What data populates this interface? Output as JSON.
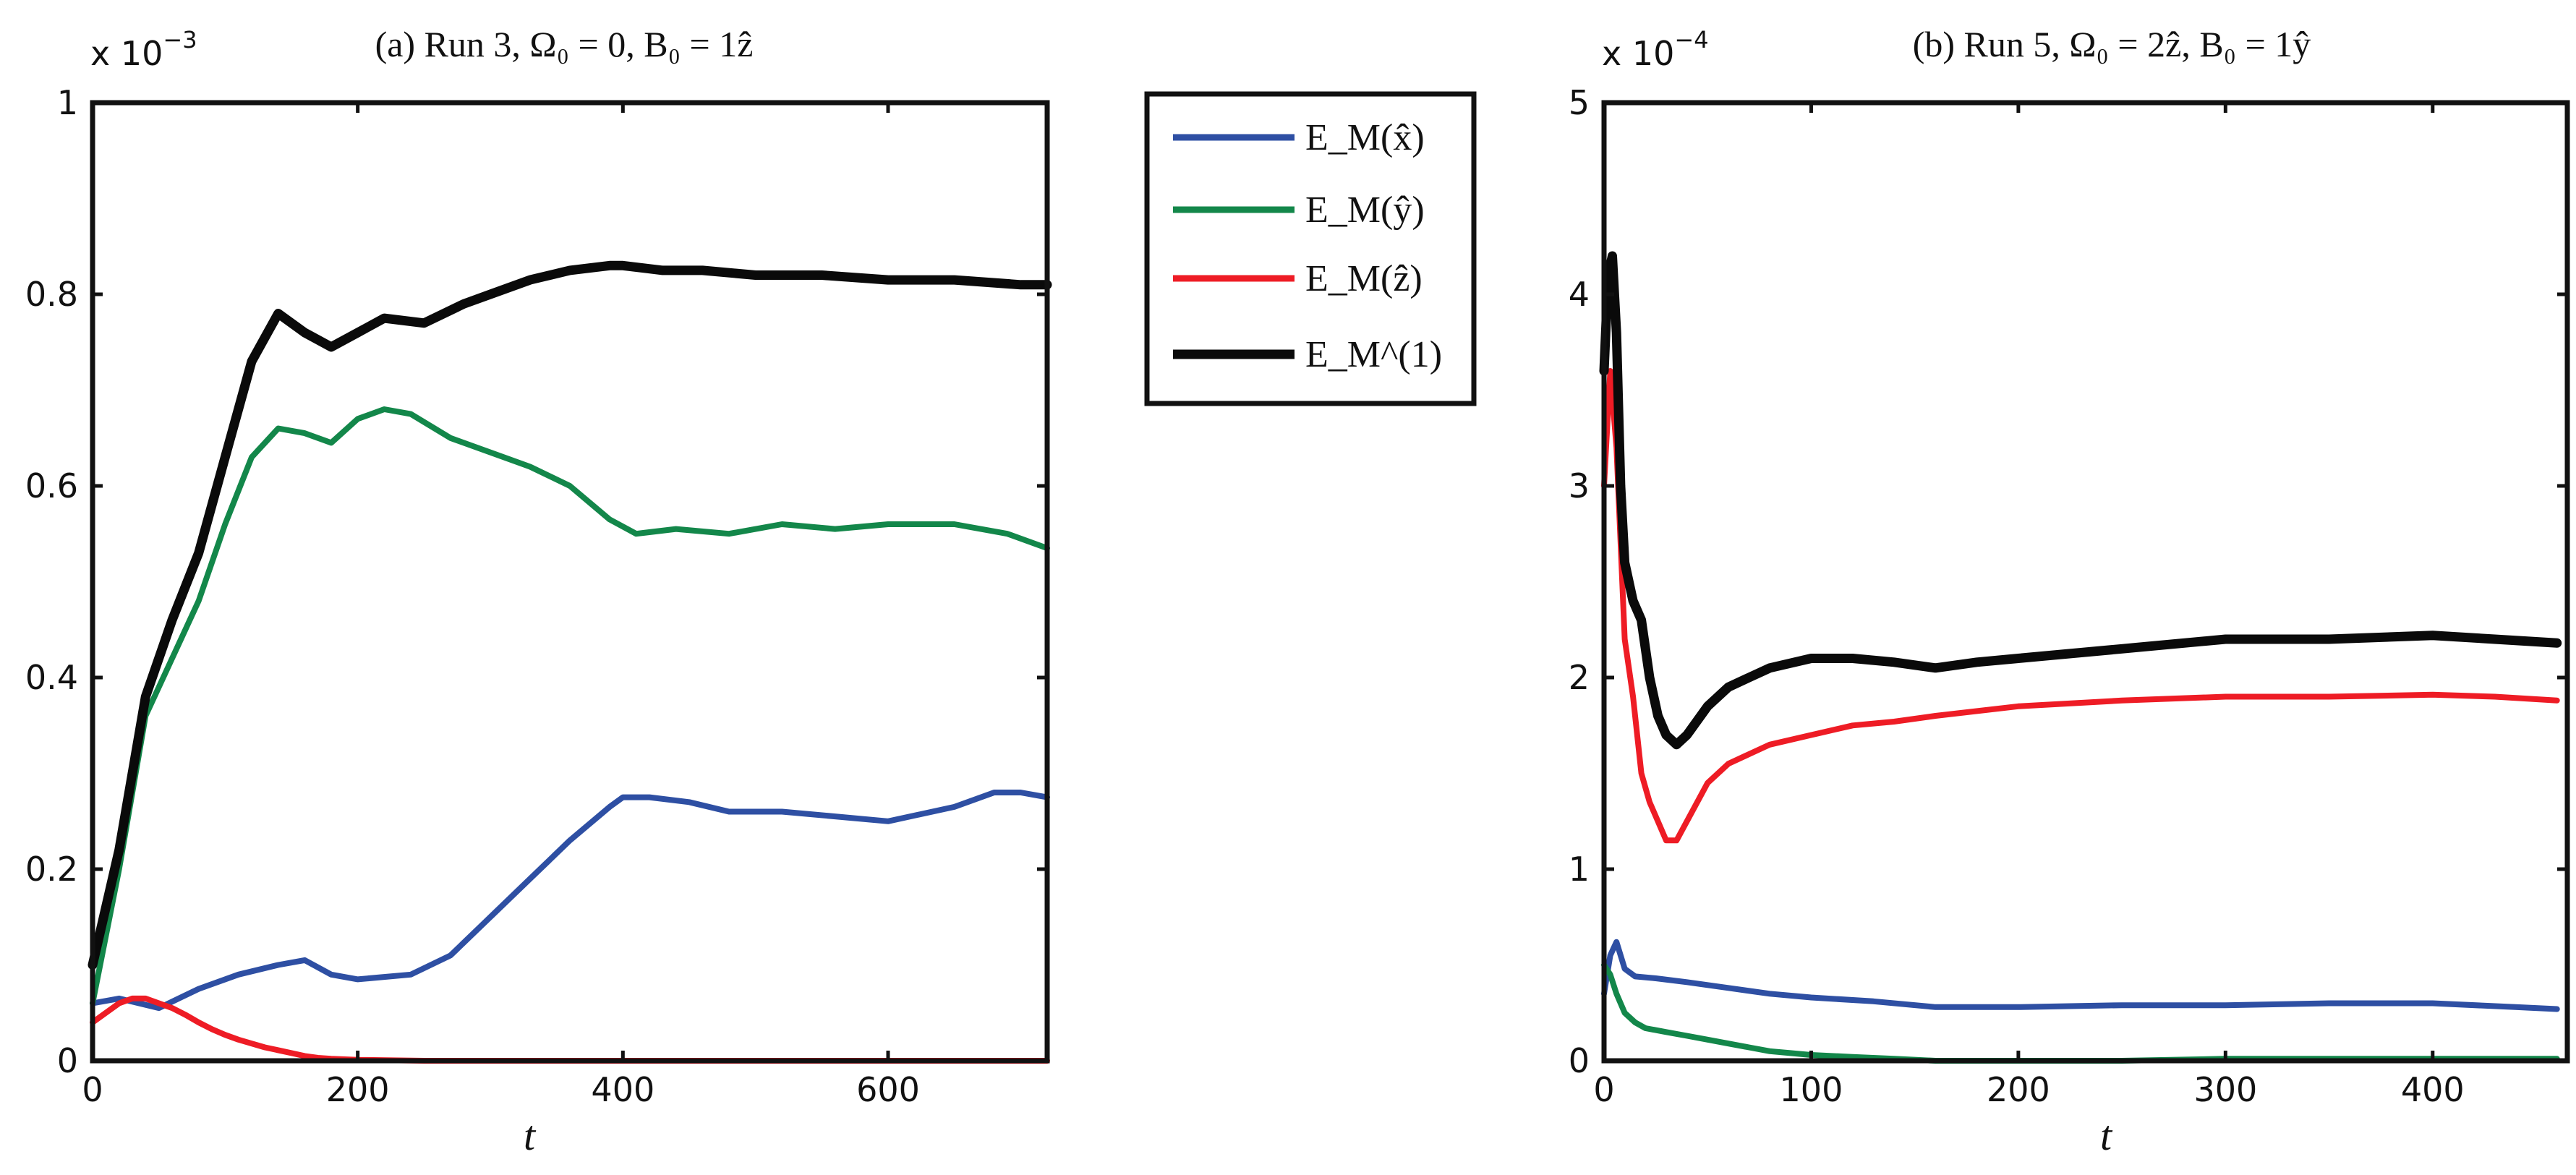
{
  "colors": {
    "ex": "#2e4fa3",
    "ey": "#13874a",
    "ez": "#ee1c25",
    "e1": "#0a0a0a"
  },
  "legend": {
    "entries": [
      {
        "key": "ex",
        "label": "E_M(x̂)"
      },
      {
        "key": "ey",
        "label": "E_M(ŷ)"
      },
      {
        "key": "ez",
        "label": "E_M(ẑ)"
      },
      {
        "key": "e1",
        "label": "E_M^(1)"
      }
    ]
  },
  "chart_data": [
    {
      "type": "line",
      "title": "(a) Run 3, Ω₀ = 0, B₀ = 1ẑ",
      "xlabel": "t",
      "ylabel": "",
      "y_multiplier": "x 10^-3",
      "xlim": [
        0,
        720
      ],
      "ylim": [
        0,
        1
      ],
      "xticks": [
        0,
        200,
        400,
        600
      ],
      "yticks": [
        0,
        0.2,
        0.4,
        0.6,
        0.8,
        1
      ],
      "ytick_labels": [
        "0",
        "0.2",
        "0.4",
        "0.6",
        "0.8",
        "1"
      ],
      "series": [
        {
          "name": "E_M(x̂)",
          "key": "ex",
          "x": [
            0,
            20,
            50,
            80,
            110,
            140,
            160,
            180,
            200,
            240,
            270,
            300,
            330,
            360,
            390,
            400,
            420,
            450,
            480,
            520,
            560,
            600,
            650,
            680,
            700,
            720
          ],
          "y": [
            0.06,
            0.065,
            0.055,
            0.075,
            0.09,
            0.1,
            0.105,
            0.09,
            0.085,
            0.09,
            0.11,
            0.15,
            0.19,
            0.23,
            0.265,
            0.275,
            0.275,
            0.27,
            0.26,
            0.26,
            0.255,
            0.25,
            0.265,
            0.28,
            0.28,
            0.275
          ]
        },
        {
          "name": "E_M(ŷ)",
          "key": "ey",
          "x": [
            0,
            20,
            40,
            60,
            80,
            100,
            120,
            140,
            160,
            180,
            200,
            220,
            240,
            270,
            300,
            330,
            360,
            390,
            410,
            440,
            480,
            520,
            560,
            600,
            650,
            690,
            720
          ],
          "y": [
            0.06,
            0.2,
            0.36,
            0.42,
            0.48,
            0.56,
            0.63,
            0.66,
            0.655,
            0.645,
            0.67,
            0.68,
            0.675,
            0.65,
            0.635,
            0.62,
            0.6,
            0.565,
            0.55,
            0.555,
            0.55,
            0.56,
            0.555,
            0.56,
            0.56,
            0.55,
            0.535
          ]
        },
        {
          "name": "E_M(ẑ)",
          "key": "ez",
          "x": [
            0,
            10,
            20,
            30,
            40,
            50,
            60,
            70,
            80,
            90,
            100,
            110,
            120,
            130,
            140,
            150,
            160,
            170,
            180,
            200,
            250,
            300,
            400,
            500,
            600,
            720
          ],
          "y": [
            0.04,
            0.05,
            0.06,
            0.065,
            0.065,
            0.06,
            0.055,
            0.048,
            0.04,
            0.033,
            0.027,
            0.022,
            0.018,
            0.014,
            0.011,
            0.008,
            0.005,
            0.003,
            0.002,
            0.001,
            0.0,
            0.0,
            0.0,
            0.0,
            0.0,
            0.0
          ]
        },
        {
          "name": "E_M^(1)",
          "key": "e1",
          "x": [
            0,
            20,
            40,
            60,
            80,
            100,
            120,
            140,
            160,
            180,
            200,
            220,
            250,
            280,
            300,
            330,
            360,
            390,
            400,
            430,
            460,
            500,
            550,
            600,
            650,
            700,
            720
          ],
          "y": [
            0.1,
            0.22,
            0.38,
            0.46,
            0.53,
            0.63,
            0.73,
            0.78,
            0.76,
            0.745,
            0.76,
            0.775,
            0.77,
            0.79,
            0.8,
            0.815,
            0.825,
            0.83,
            0.83,
            0.825,
            0.825,
            0.82,
            0.82,
            0.815,
            0.815,
            0.81,
            0.81
          ]
        }
      ]
    },
    {
      "type": "line",
      "title": "(b) Run 5, Ω₀ = 2ẑ, B₀ = 1ŷ",
      "xlabel": "t",
      "ylabel": "",
      "y_multiplier": "x 10^-4",
      "xlim": [
        0,
        465
      ],
      "ylim": [
        0,
        5
      ],
      "xticks": [
        0,
        100,
        200,
        300,
        400
      ],
      "yticks": [
        0,
        1,
        2,
        3,
        4,
        5
      ],
      "ytick_labels": [
        "0",
        "1",
        "2",
        "3",
        "4",
        "5"
      ],
      "series": [
        {
          "name": "E_M(x̂)",
          "key": "ex",
          "x": [
            0,
            3,
            6,
            10,
            15,
            25,
            40,
            60,
            80,
            100,
            130,
            160,
            200,
            250,
            300,
            350,
            400,
            440,
            460
          ],
          "y": [
            0.35,
            0.55,
            0.62,
            0.48,
            0.44,
            0.43,
            0.41,
            0.38,
            0.35,
            0.33,
            0.31,
            0.28,
            0.28,
            0.29,
            0.29,
            0.3,
            0.3,
            0.28,
            0.27
          ]
        },
        {
          "name": "E_M(ŷ)",
          "key": "ey",
          "x": [
            0,
            3,
            6,
            10,
            15,
            20,
            30,
            40,
            50,
            60,
            70,
            80,
            90,
            100,
            120,
            140,
            160,
            200,
            250,
            300,
            350,
            400,
            460
          ],
          "y": [
            0.5,
            0.45,
            0.35,
            0.25,
            0.2,
            0.17,
            0.15,
            0.13,
            0.11,
            0.09,
            0.07,
            0.05,
            0.04,
            0.03,
            0.02,
            0.01,
            0.0,
            0.0,
            0.0,
            0.01,
            0.01,
            0.01,
            0.01
          ]
        },
        {
          "name": "E_M(ẑ)",
          "key": "ez",
          "x": [
            0,
            3,
            6,
            10,
            14,
            18,
            22,
            26,
            30,
            35,
            40,
            50,
            60,
            70,
            80,
            100,
            120,
            140,
            160,
            200,
            250,
            300,
            350,
            400,
            430,
            460
          ],
          "y": [
            3.0,
            3.6,
            3.2,
            2.2,
            1.9,
            1.5,
            1.35,
            1.25,
            1.15,
            1.15,
            1.25,
            1.45,
            1.55,
            1.6,
            1.65,
            1.7,
            1.75,
            1.77,
            1.8,
            1.85,
            1.88,
            1.9,
            1.9,
            1.91,
            1.9,
            1.88
          ]
        },
        {
          "name": "E_M^(1)",
          "key": "e1",
          "x": [
            0,
            2,
            4,
            6,
            8,
            10,
            14,
            18,
            22,
            26,
            30,
            35,
            40,
            50,
            60,
            70,
            80,
            100,
            120,
            140,
            160,
            180,
            200,
            250,
            300,
            350,
            400,
            430,
            460
          ],
          "y": [
            3.6,
            4.1,
            4.2,
            3.8,
            3.0,
            2.6,
            2.4,
            2.3,
            2.0,
            1.8,
            1.7,
            1.65,
            1.7,
            1.85,
            1.95,
            2.0,
            2.05,
            2.1,
            2.1,
            2.08,
            2.05,
            2.08,
            2.1,
            2.15,
            2.2,
            2.2,
            2.22,
            2.2,
            2.18
          ]
        }
      ]
    }
  ]
}
